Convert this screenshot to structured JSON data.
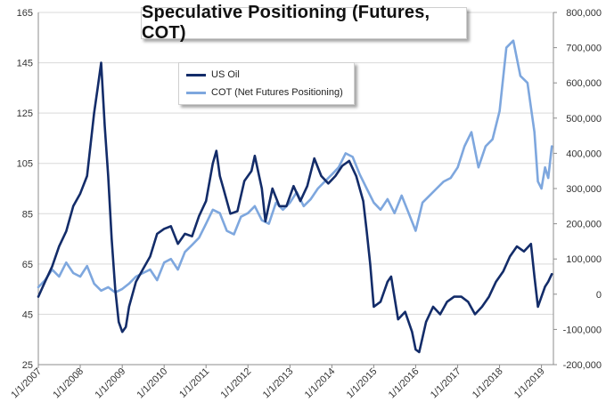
{
  "chart_data": {
    "type": "line",
    "title": "Speculative Positioning (Futures, COT)",
    "legend_position": "upper-left inset",
    "grid": "horizontal",
    "colors": {
      "US Oil": "#132c69",
      "COT (Net Futures Positioning)": "#7ea7de",
      "grid": "#d9d9d9"
    },
    "x_axis": {
      "type": "date",
      "range": [
        "2007-01-01",
        "2019-04-15"
      ],
      "tick_labels": [
        "1/1/2007",
        "1/1/2008",
        "1/1/2009",
        "1/1/2010",
        "1/1/2011",
        "1/1/2012",
        "1/1/2013",
        "1/1/2014",
        "1/1/2015",
        "1/1/2016",
        "1/1/2017",
        "1/1/2018",
        "1/1/2019"
      ]
    },
    "y_axis_left": {
      "range": [
        25,
        165
      ],
      "tick_labels": [
        "25",
        "45",
        "65",
        "85",
        "105",
        "125",
        "145",
        "165"
      ]
    },
    "y_axis_right": {
      "range": [
        -200000,
        800000
      ],
      "tick_labels": [
        "-200,000",
        "-100,000",
        "0",
        "100,000",
        "200,000",
        "300,000",
        "400,000",
        "500,000",
        "600,000",
        "700,000",
        "800,000"
      ]
    },
    "series": [
      {
        "name": "US Oil",
        "axis": "left",
        "x": [
          "2007-01-01",
          "2007-03-01",
          "2007-05-01",
          "2007-07-01",
          "2007-09-01",
          "2007-11-01",
          "2008-01-01",
          "2008-03-01",
          "2008-05-01",
          "2008-06-01",
          "2008-07-01",
          "2008-08-01",
          "2008-09-01",
          "2008-10-01",
          "2008-11-01",
          "2008-12-01",
          "2009-01-01",
          "2009-02-01",
          "2009-03-01",
          "2009-05-01",
          "2009-07-01",
          "2009-09-01",
          "2009-11-01",
          "2010-01-01",
          "2010-03-01",
          "2010-05-01",
          "2010-07-01",
          "2010-09-01",
          "2010-11-01",
          "2011-01-01",
          "2011-03-01",
          "2011-04-01",
          "2011-05-01",
          "2011-06-01",
          "2011-08-01",
          "2011-10-01",
          "2011-12-01",
          "2012-02-01",
          "2012-03-01",
          "2012-05-01",
          "2012-06-01",
          "2012-08-01",
          "2012-10-01",
          "2012-12-01",
          "2013-02-01",
          "2013-04-01",
          "2013-06-01",
          "2013-08-01",
          "2013-10-01",
          "2013-12-01",
          "2014-02-01",
          "2014-04-01",
          "2014-06-01",
          "2014-08-01",
          "2014-10-01",
          "2014-11-01",
          "2014-12-01",
          "2015-01-01",
          "2015-03-01",
          "2015-05-01",
          "2015-06-01",
          "2015-08-01",
          "2015-10-01",
          "2015-12-01",
          "2016-01-01",
          "2016-02-01",
          "2016-04-01",
          "2016-06-01",
          "2016-08-01",
          "2016-10-01",
          "2016-12-01",
          "2017-02-01",
          "2017-04-01",
          "2017-06-01",
          "2017-08-01",
          "2017-10-01",
          "2017-12-01",
          "2018-02-01",
          "2018-04-01",
          "2018-06-01",
          "2018-08-01",
          "2018-10-01",
          "2018-11-01",
          "2018-12-01",
          "2019-01-01",
          "2019-02-01",
          "2019-03-01",
          "2019-04-01"
        ],
        "values": [
          52,
          58,
          64,
          72,
          78,
          88,
          93,
          100,
          125,
          135,
          145,
          120,
          100,
          75,
          55,
          42,
          38,
          40,
          48,
          58,
          63,
          68,
          77,
          79,
          80,
          73,
          77,
          76,
          84,
          90,
          105,
          110,
          100,
          95,
          85,
          86,
          98,
          102,
          108,
          95,
          82,
          95,
          88,
          88,
          96,
          90,
          96,
          107,
          100,
          97,
          100,
          104,
          106,
          100,
          90,
          78,
          65,
          48,
          50,
          58,
          60,
          43,
          46,
          38,
          31,
          30,
          42,
          48,
          45,
          50,
          52,
          52,
          50,
          45,
          48,
          52,
          58,
          62,
          68,
          72,
          70,
          73,
          60,
          48,
          52,
          56,
          58,
          61
        ]
      },
      {
        "name": "COT (Net Futures Positioning)",
        "axis": "right",
        "x": [
          "2007-01-01",
          "2007-03-01",
          "2007-05-01",
          "2007-07-01",
          "2007-09-01",
          "2007-11-01",
          "2008-01-01",
          "2008-03-01",
          "2008-05-01",
          "2008-07-01",
          "2008-09-01",
          "2008-11-01",
          "2009-01-01",
          "2009-03-01",
          "2009-05-01",
          "2009-07-01",
          "2009-09-01",
          "2009-11-01",
          "2010-01-01",
          "2010-03-01",
          "2010-05-01",
          "2010-07-01",
          "2010-09-01",
          "2010-11-01",
          "2011-01-01",
          "2011-03-01",
          "2011-05-01",
          "2011-07-01",
          "2011-09-01",
          "2011-11-01",
          "2012-01-01",
          "2012-03-01",
          "2012-05-01",
          "2012-07-01",
          "2012-09-01",
          "2012-11-01",
          "2013-01-01",
          "2013-03-01",
          "2013-05-01",
          "2013-07-01",
          "2013-09-01",
          "2013-11-01",
          "2014-01-01",
          "2014-03-01",
          "2014-05-01",
          "2014-07-01",
          "2014-09-01",
          "2014-11-01",
          "2015-01-01",
          "2015-03-01",
          "2015-05-01",
          "2015-07-01",
          "2015-09-01",
          "2015-11-01",
          "2016-01-01",
          "2016-03-01",
          "2016-05-01",
          "2016-07-01",
          "2016-09-01",
          "2016-11-01",
          "2017-01-01",
          "2017-03-01",
          "2017-05-01",
          "2017-07-01",
          "2017-09-01",
          "2017-11-01",
          "2018-01-01",
          "2018-03-01",
          "2018-05-01",
          "2018-07-01",
          "2018-09-01",
          "2018-11-01",
          "2018-12-01",
          "2019-01-01",
          "2019-02-01",
          "2019-03-01",
          "2019-04-01"
        ],
        "values": [
          20000,
          40000,
          70000,
          50000,
          90000,
          60000,
          50000,
          80000,
          30000,
          10000,
          20000,
          5000,
          15000,
          30000,
          50000,
          60000,
          70000,
          40000,
          90000,
          100000,
          70000,
          120000,
          140000,
          160000,
          200000,
          240000,
          230000,
          180000,
          170000,
          220000,
          230000,
          250000,
          210000,
          200000,
          260000,
          240000,
          260000,
          290000,
          250000,
          270000,
          300000,
          320000,
          340000,
          360000,
          400000,
          390000,
          340000,
          300000,
          260000,
          240000,
          270000,
          230000,
          280000,
          230000,
          180000,
          260000,
          280000,
          300000,
          320000,
          330000,
          360000,
          420000,
          460000,
          360000,
          420000,
          440000,
          520000,
          700000,
          720000,
          620000,
          600000,
          460000,
          320000,
          300000,
          360000,
          330000,
          420000
        ]
      }
    ]
  }
}
